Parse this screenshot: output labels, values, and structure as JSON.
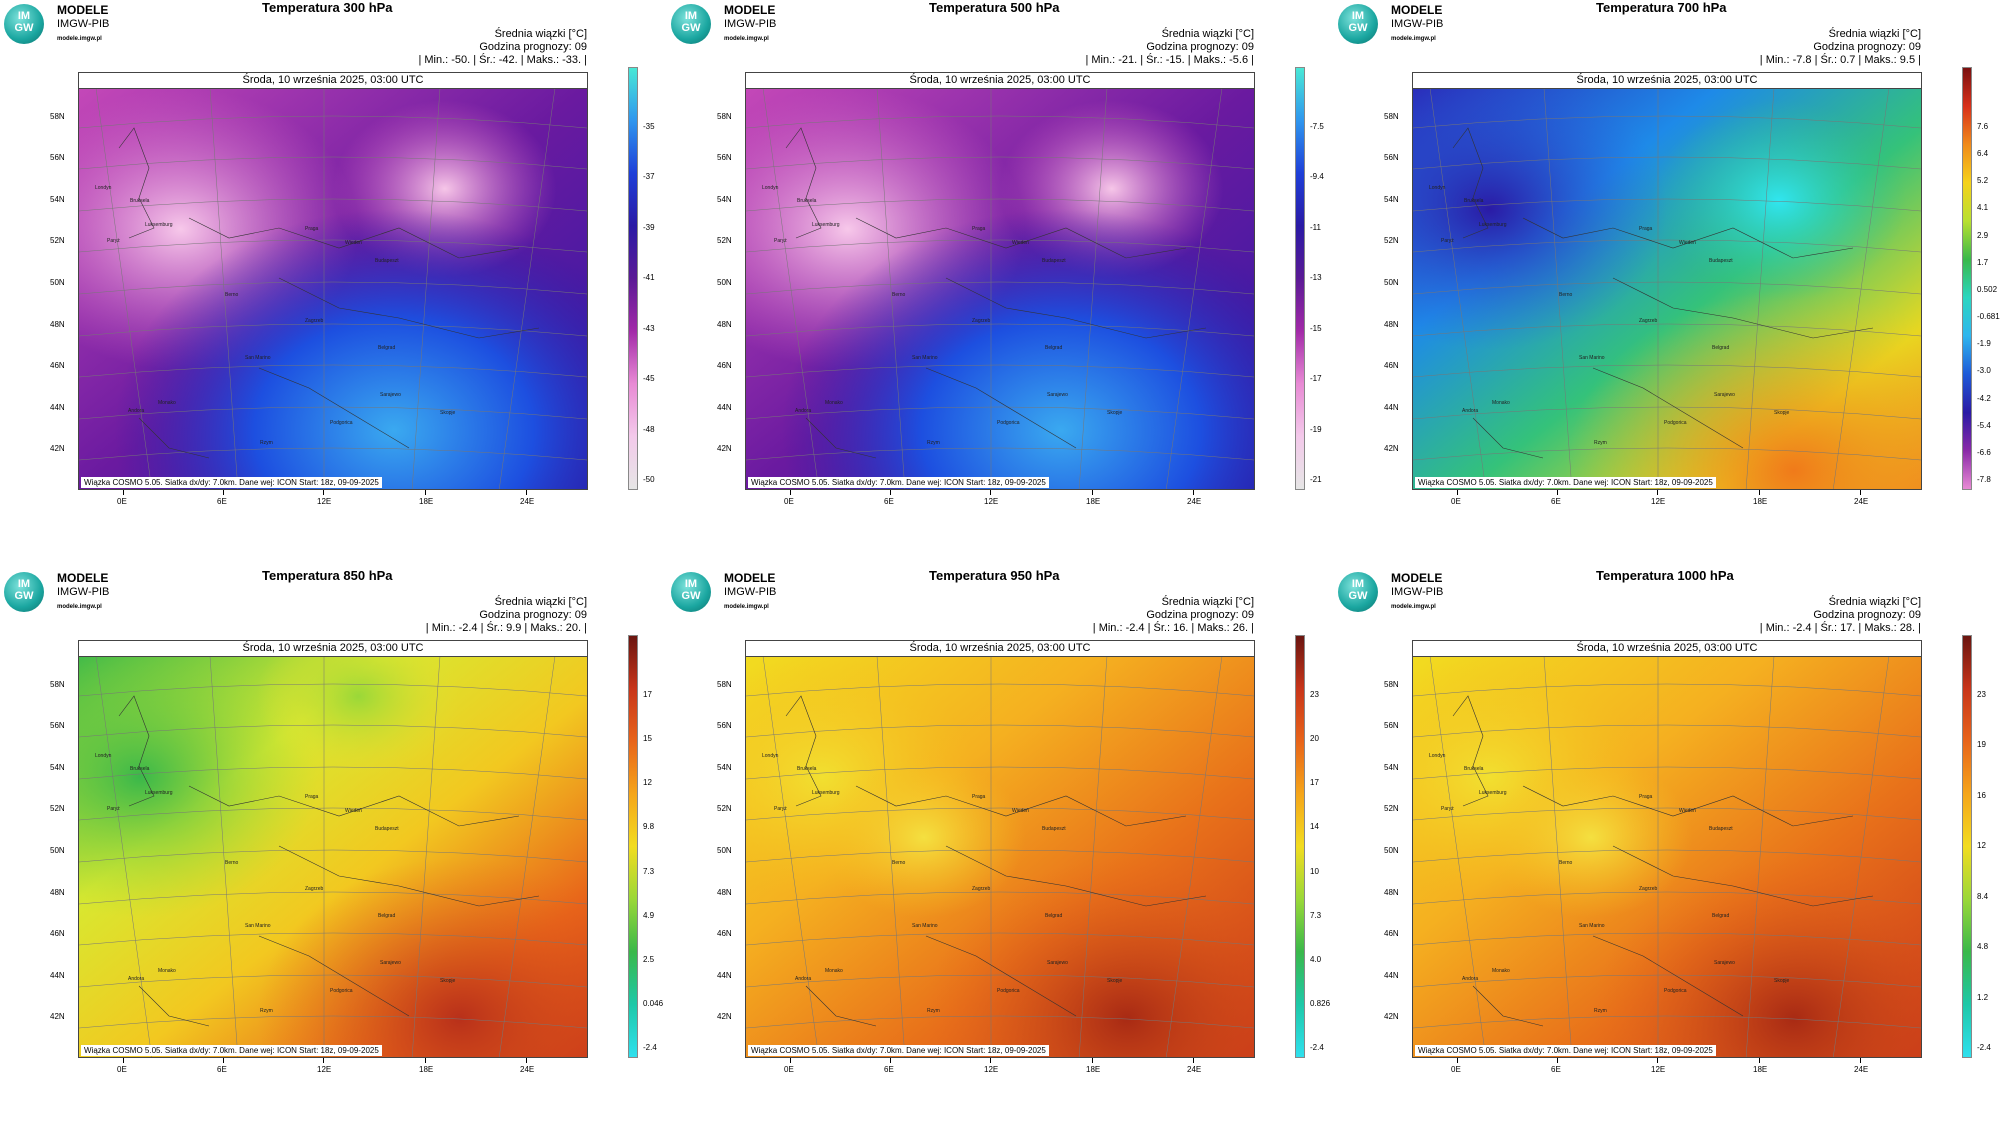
{
  "brand": {
    "name": "MODELE",
    "org": "IMGW-PIB",
    "url": "modele.imgw.pl",
    "logo_top": "IM",
    "logo_bottom": "GW"
  },
  "panels": [
    {
      "title": "Temperatura 300 hPa",
      "info_line1": "Średnia wiązki [°C]",
      "info_line2": "Godzina prognozy: 09",
      "info_line3": "| Min.:    -50. | Śr.:    -42. | Maks.:    -33. |",
      "date": "Środa, 10 września 2025, 03:00 UTC",
      "footer": "Wiązka COSMO 5.05. Siatka dx/dy: 7.0km. Dane wej: ICON Start: 18z, 09-09-2025",
      "colorbar_labels": [
        "-35",
        "-37",
        "-39",
        "-41",
        "-43",
        "-45",
        "-48",
        "-50"
      ],
      "colorbar_colors": [
        "#49e8d6",
        "#2f96ee",
        "#1e3fd8",
        "#2a1aa5",
        "#5a1a95",
        "#a22aa8",
        "#e88ad4",
        "#f3c9ea",
        "#e6e6e6"
      ],
      "scheme": "cold"
    },
    {
      "title": "Temperatura 500 hPa",
      "info_line1": "Średnia wiązki [°C]",
      "info_line2": "Godzina prognozy: 09",
      "info_line3": "| Min.:    -21. | Śr.:    -15. | Maks.:    -5.6 |",
      "date": "Środa, 10 września 2025, 03:00 UTC",
      "footer": "Wiązka COSMO 5.05. Siatka dx/dy: 7.0km. Dane wej: ICON Start: 18z, 09-09-2025",
      "colorbar_labels": [
        "-7.5",
        "-9.4",
        "-11",
        "-13",
        "-15",
        "-17",
        "-19",
        "-21"
      ],
      "colorbar_colors": [
        "#49e8d6",
        "#2f96ee",
        "#1e3fd8",
        "#2a1aa5",
        "#5a1a95",
        "#a22aa8",
        "#e88ad4",
        "#f3c9ea",
        "#e6e6e6"
      ],
      "scheme": "cold"
    },
    {
      "title": "Temperatura 700 hPa",
      "info_line1": "Średnia wiązki [°C]",
      "info_line2": "Godzina prognozy: 09",
      "info_line3": "| Min.:    -7.8 | Śr.:    0.7 | Maks.:    9.5 |",
      "date": "Środa, 10 września 2025, 03:00 UTC",
      "footer": "Wiązka COSMO 5.05. Siatka dx/dy: 7.0km. Dane wej: ICON Start: 18z, 09-09-2025",
      "colorbar_labels": [
        "7.6",
        "6.4",
        "5.2",
        "4.1",
        "2.9",
        "1.7",
        "0.502",
        "-0.681",
        "-1.9",
        "-3.0",
        "-4.2",
        "-5.4",
        "-6.6",
        "-7.8"
      ],
      "colorbar_colors": [
        "#7a1010",
        "#d8301a",
        "#f08a1a",
        "#f5d21a",
        "#b8e030",
        "#3ab84a",
        "#2bd6c0",
        "#2fb6ee",
        "#1e5ad8",
        "#2a1aa5",
        "#8a2aa8",
        "#e88ad4"
      ],
      "scheme": "mid"
    },
    {
      "title": "Temperatura 850 hPa",
      "info_line1": "Średnia wiązki [°C]",
      "info_line2": "Godzina prognozy: 09",
      "info_line3": "| Min.:    -2.4 | Śr.:    9.9 | Maks.:    20. |",
      "date": "Środa, 10 września 2025, 03:00 UTC",
      "footer": "Wiązka COSMO 5.05. Siatka dx/dy: 7.0km. Dane wej: ICON Start: 18z, 09-09-2025",
      "colorbar_labels": [
        "17",
        "15",
        "12",
        "9.8",
        "7.3",
        "4.9",
        "2.5",
        "0.046",
        "-2.4"
      ],
      "colorbar_colors": [
        "#6a1510",
        "#c8351a",
        "#e8641a",
        "#f5a51a",
        "#f2dc20",
        "#9ad838",
        "#3ab84a",
        "#1ec8a8",
        "#2fe0ee"
      ],
      "scheme": "warm850"
    },
    {
      "title": "Temperatura 950 hPa",
      "info_line1": "Średnia wiązki [°C]",
      "info_line2": "Godzina prognozy: 09",
      "info_line3": "| Min.:    -2.4 | Śr.:    16. | Maks.:    26. |",
      "date": "Środa, 10 września 2025, 03:00 UTC",
      "footer": "Wiązka COSMO 5.05. Siatka dx/dy: 7.0km. Dane wej: ICON Start: 18z, 09-09-2025",
      "colorbar_labels": [
        "23",
        "20",
        "17",
        "14",
        "10",
        "7.3",
        "4.0",
        "0.826",
        "-2.4"
      ],
      "colorbar_colors": [
        "#6a1510",
        "#c8351a",
        "#e8641a",
        "#f5a51a",
        "#f2dc20",
        "#9ad838",
        "#3ab84a",
        "#1ec8a8",
        "#2fe0ee"
      ],
      "scheme": "warm"
    },
    {
      "title": "Temperatura 1000 hPa",
      "info_line1": "Średnia wiązki [°C]",
      "info_line2": "Godzina prognozy: 09",
      "info_line3": "| Min.:    -2.4 | Śr.:    17. | Maks.:    28. |",
      "date": "Środa, 10 września 2025, 03:00 UTC",
      "footer": "Wiązka COSMO 5.05. Siatka dx/dy: 7.0km. Dane wej: ICON Start: 18z, 09-09-2025",
      "colorbar_labels": [
        "23",
        "19",
        "16",
        "12",
        "8.4",
        "4.8",
        "1.2",
        "-2.4"
      ],
      "colorbar_colors": [
        "#6a1510",
        "#c8351a",
        "#e8641a",
        "#f5a51a",
        "#f2dc20",
        "#9ad838",
        "#3ab84a",
        "#1ec8a8",
        "#2fe0ee"
      ],
      "scheme": "warm"
    }
  ],
  "lat_labels": [
    "58N",
    "56N",
    "54N",
    "52N",
    "50N",
    "48N",
    "46N",
    "44N",
    "42N"
  ],
  "lon_labels": [
    "0E",
    "6E",
    "12E",
    "18E",
    "24E"
  ],
  "cities": [
    "Londyn",
    "Bruksela",
    "Paryż",
    "Luksemburg",
    "Praga",
    "Wiedeń",
    "Budapeszt",
    "Berno",
    "Zagrzeb",
    "Belgrad",
    "San Marino",
    "Sarajewo",
    "Monako",
    "Podgorica",
    "Andora",
    "Skopje",
    "Rzym"
  ]
}
